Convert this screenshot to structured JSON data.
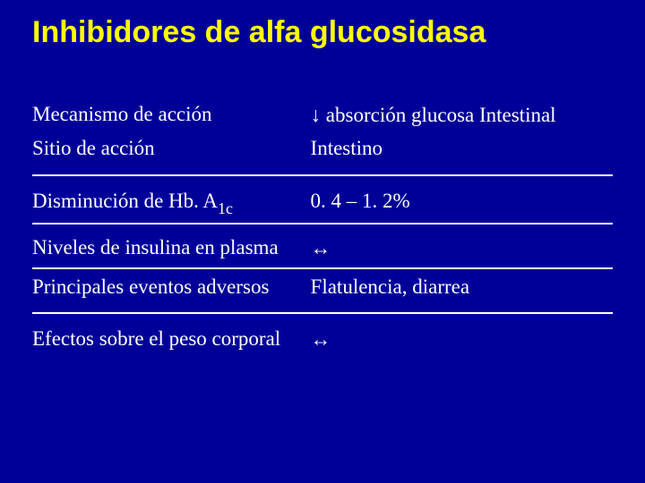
{
  "colors": {
    "background": "#000099",
    "title": "#ffff00",
    "body_text": "#ffffff",
    "divider": "#ffffff"
  },
  "typography": {
    "title_font": "Arial",
    "title_fontsize_pt": 26,
    "title_weight": 900,
    "body_font": "Times New Roman",
    "body_fontsize_pt": 17
  },
  "title": "Inhibidores de alfa glucosidasa",
  "table": {
    "type": "two-column-list",
    "col_widths_pct": [
      47,
      53
    ],
    "rows": [
      {
        "left": "Mecanismo de acción",
        "right_prefix_symbol": "down-arrow",
        "right": " absorción glucosa Intestinal"
      },
      {
        "left": "Sitio de acción",
        "right": "Intestino"
      },
      {
        "left": "Disminución de Hb. A",
        "left_sub": "1c",
        "right": "0. 4 – 1. 2%"
      },
      {
        "left": "Niveles de insulina en plasma",
        "right_prefix_symbol": "left-right-arrow",
        "right": ""
      },
      {
        "left": "Principales eventos adversos",
        "right": "Flatulencia, diarrea"
      },
      {
        "left": "Efectos sobre el peso corporal",
        "right_prefix_symbol": "left-right-arrow",
        "right": ""
      }
    ],
    "dividers_after_row_index": [
      1,
      2,
      3,
      4
    ],
    "divider_extra_spacing_after_row_index": [
      1,
      4
    ]
  },
  "symbols": {
    "down-arrow": "↓",
    "left-right-arrow": "↔"
  }
}
